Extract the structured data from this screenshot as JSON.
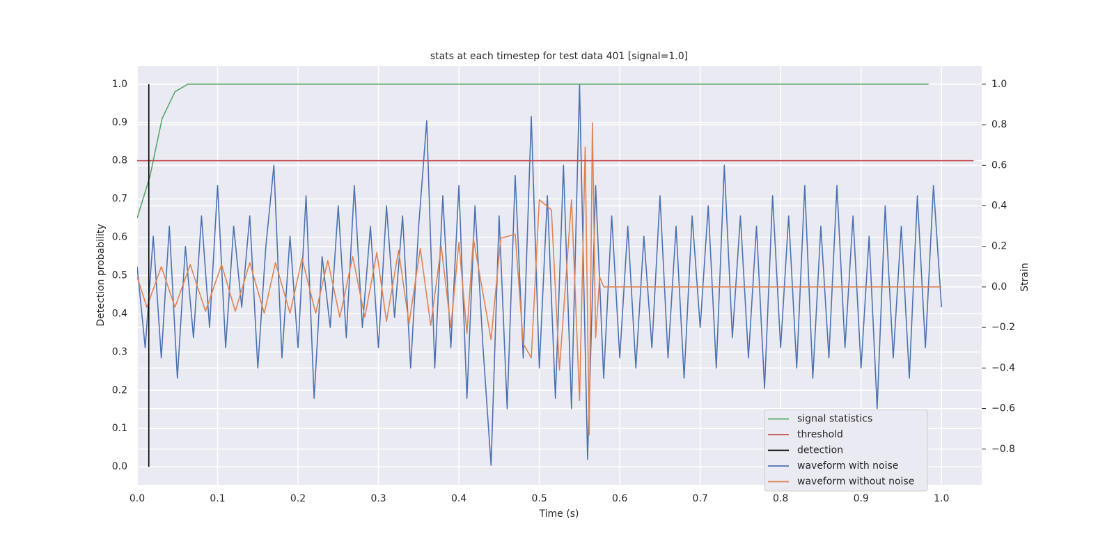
{
  "chart_data": {
    "type": "line",
    "title": "stats at each timestep for test data 401 [signal=1.0]",
    "x_label": "Time (s)",
    "y_label": "Detection probability",
    "y2_label": "Strain",
    "xlim": [
      0,
      1.05
    ],
    "ylim": [
      -0.047,
      1.047
    ],
    "y2lim": [
      -0.976,
      1.089
    ],
    "xticks": [
      {
        "value": 0,
        "label": "0.0"
      },
      0.1,
      0.2,
      0.3,
      0.4,
      0.5,
      0.6,
      0.7,
      0.8,
      0.9,
      {
        "value": 1,
        "label": "1.0"
      }
    ],
    "yticks": [
      {
        "value": 0,
        "label": "0.0"
      },
      0.1,
      0.2,
      0.3,
      0.4,
      0.5,
      0.6,
      0.7,
      0.8,
      0.9,
      {
        "value": 1,
        "label": "1.0"
      }
    ],
    "y2ticks": [
      {
        "value": -0.8,
        "label": "−0.8"
      },
      {
        "value": -0.6,
        "label": "−0.6"
      },
      {
        "value": -0.4,
        "label": "−0.4"
      },
      {
        "value": -0.2,
        "label": "−0.2"
      },
      {
        "value": 0,
        "label": "0.0"
      },
      0.2,
      0.4,
      0.6,
      0.8,
      {
        "value": 1,
        "label": "1.0"
      }
    ],
    "grid": true,
    "legend": "lower right",
    "series": [
      {
        "name": "signal statistics",
        "color": "#55a868",
        "x": [
          0,
          0.016,
          0.031,
          0.047,
          0.063,
          0.984
        ],
        "values": [
          0.65,
          0.76,
          0.91,
          0.98,
          1.0,
          1.0
        ]
      },
      {
        "name": "threshold",
        "color": "#c44e52",
        "x": [
          0,
          1.04
        ],
        "values": [
          0.8,
          0.8
        ]
      },
      {
        "name": "detection",
        "color": "#000000",
        "x": [
          0.0145,
          0.0145
        ],
        "values": [
          0,
          1
        ]
      },
      {
        "name": "waveform with noise",
        "color": "#4c72b0",
        "axis": "y2",
        "x": [
          0,
          0.01,
          0.02,
          0.03,
          0.04,
          0.05,
          0.06,
          0.07,
          0.08,
          0.09,
          0.1,
          0.11,
          0.12,
          0.13,
          0.14,
          0.15,
          0.16,
          0.17,
          0.18,
          0.19,
          0.2,
          0.21,
          0.22,
          0.23,
          0.24,
          0.25,
          0.26,
          0.27,
          0.28,
          0.29,
          0.3,
          0.31,
          0.32,
          0.33,
          0.34,
          0.35,
          0.36,
          0.37,
          0.38,
          0.39,
          0.4,
          0.41,
          0.42,
          0.43,
          0.44,
          0.45,
          0.46,
          0.47,
          0.48,
          0.49,
          0.5,
          0.51,
          0.52,
          0.53,
          0.54,
          0.55,
          0.56,
          0.57,
          0.58,
          0.59,
          0.6,
          0.61,
          0.62,
          0.63,
          0.64,
          0.65,
          0.66,
          0.67,
          0.68,
          0.69,
          0.7,
          0.71,
          0.72,
          0.73,
          0.74,
          0.75,
          0.76,
          0.77,
          0.78,
          0.79,
          0.8,
          0.81,
          0.82,
          0.83,
          0.84,
          0.85,
          0.86,
          0.87,
          0.88,
          0.89,
          0.9,
          0.91,
          0.92,
          0.93,
          0.94,
          0.95,
          0.96,
          0.97,
          0.98,
          0.99,
          1.0
        ],
        "values": [
          0.1,
          -0.3,
          0.25,
          -0.35,
          0.3,
          -0.45,
          0.2,
          -0.25,
          0.35,
          -0.2,
          0.5,
          -0.3,
          0.3,
          -0.1,
          0.35,
          -0.4,
          0.2,
          0.6,
          -0.35,
          0.25,
          -0.3,
          0.45,
          -0.55,
          0.15,
          -0.2,
          0.4,
          -0.25,
          0.5,
          -0.2,
          0.3,
          -0.3,
          0.4,
          -0.15,
          0.35,
          -0.4,
          0.3,
          0.82,
          -0.4,
          0.45,
          -0.3,
          0.5,
          -0.55,
          0.4,
          -0.3,
          -0.88,
          0.35,
          -0.6,
          0.55,
          -0.35,
          0.84,
          -0.4,
          0.45,
          -0.55,
          0.6,
          -0.6,
          1.0,
          -0.85,
          0.5,
          -0.45,
          0.35,
          -0.35,
          0.3,
          -0.4,
          0.25,
          -0.3,
          0.45,
          -0.35,
          0.3,
          -0.45,
          0.35,
          -0.2,
          0.4,
          -0.4,
          0.6,
          -0.25,
          0.35,
          -0.35,
          0.3,
          -0.5,
          0.45,
          -0.3,
          0.35,
          -0.4,
          0.5,
          -0.45,
          0.3,
          -0.35,
          0.5,
          -0.3,
          0.35,
          -0.4,
          0.25,
          -0.6,
          0.4,
          -0.35,
          0.3,
          -0.45,
          0.45,
          -0.3,
          0.5,
          -0.1
        ]
      },
      {
        "name": "waveform without noise",
        "color": "#dd8452",
        "axis": "y2",
        "x": [
          0,
          0.012,
          0.03,
          0.047,
          0.066,
          0.085,
          0.105,
          0.122,
          0.14,
          0.158,
          0.172,
          0.19,
          0.205,
          0.222,
          0.237,
          0.252,
          0.268,
          0.283,
          0.298,
          0.31,
          0.325,
          0.338,
          0.352,
          0.365,
          0.378,
          0.39,
          0.4,
          0.41,
          0.418,
          0.44,
          0.452,
          0.47,
          0.48,
          0.49,
          0.5,
          0.515,
          0.525,
          0.54,
          0.55,
          0.557,
          0.562,
          0.566,
          0.57,
          0.575,
          0.58,
          1.0
        ],
        "values": [
          0.05,
          -0.1,
          0.1,
          -0.1,
          0.11,
          -0.12,
          0.11,
          -0.12,
          0.12,
          -0.13,
          0.12,
          -0.13,
          0.14,
          -0.13,
          0.13,
          -0.15,
          0.15,
          -0.15,
          0.17,
          -0.17,
          0.18,
          -0.18,
          0.19,
          -0.19,
          0.2,
          -0.2,
          0.22,
          -0.23,
          0.24,
          -0.26,
          0.24,
          0.26,
          -0.28,
          -0.35,
          0.43,
          0.38,
          -0.41,
          0.43,
          -0.56,
          0.69,
          -0.73,
          0.81,
          -0.25,
          0.05,
          0,
          0
        ]
      }
    ]
  }
}
